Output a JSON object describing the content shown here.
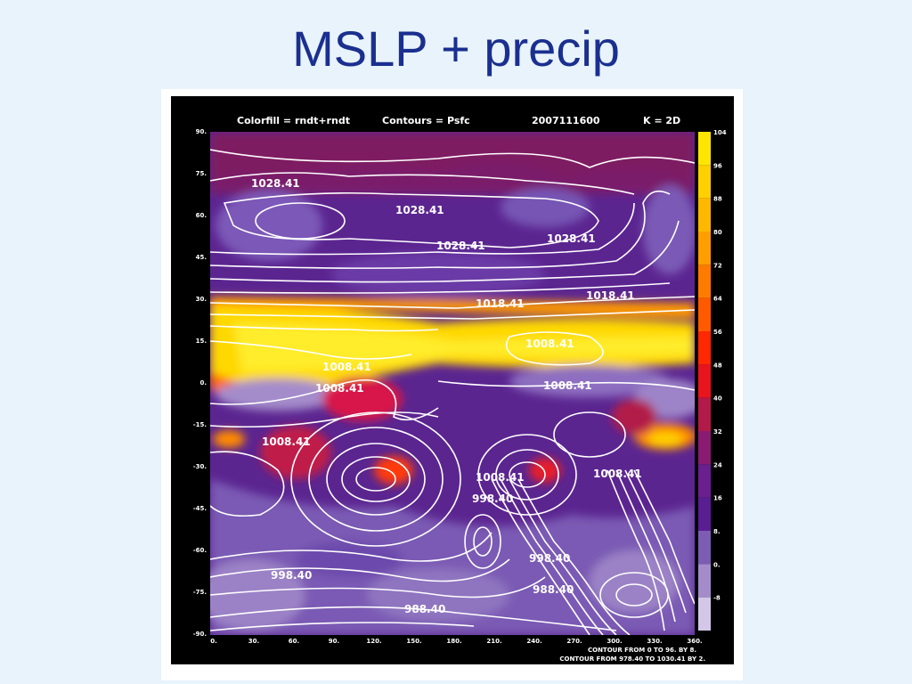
{
  "slide": {
    "title": "MSLP + precip"
  },
  "figure": {
    "header": {
      "colorfill": "Colorfill = rndt+rndt",
      "contours": "Contours = Psfc",
      "date": "2007111600",
      "k": "K =   2D"
    },
    "y_ticks": [
      "90.",
      "75.",
      "60.",
      "45.",
      "30.",
      "15.",
      "0.",
      "-15.",
      "-30.",
      "-45.",
      "-60.",
      "-75.",
      "-90."
    ],
    "x_ticks": [
      "0.",
      "30.",
      "60.",
      "90.",
      "120.",
      "150.",
      "180.",
      "210.",
      "240.",
      "270.",
      "300.",
      "330.",
      "360."
    ],
    "colorbar_labels": [
      "104",
      "96",
      "88",
      "80",
      "72",
      "64",
      "56",
      "48",
      "40",
      "32",
      "24",
      "16",
      "8.",
      "0.",
      "-8"
    ],
    "colorbar_colors": [
      "#ffe600",
      "#ffd000",
      "#ffb800",
      "#ff9e00",
      "#ff7b00",
      "#ff5a00",
      "#ff2800",
      "#e8141e",
      "#b21a4a",
      "#8a1b72",
      "#6a1f8e",
      "#5a1e93",
      "#7d5cb3",
      "#a48ccb",
      "#d3c6e6"
    ],
    "contour_labels": [
      "1028.41",
      "1028.41",
      "1028.41",
      "1028.41",
      "1018.41",
      "1018.41",
      "1008.41",
      "1008.41",
      "1008.41",
      "1008.41",
      "1008.41",
      "1008.41",
      "1008.41",
      "998.40",
      "998.40",
      "998.40",
      "988.40",
      "988.40"
    ],
    "footer": {
      "line1": "CONTOUR FROM 0 TO 96. BY 8.",
      "line2": "CONTOUR FROM 978.40 TO 1030.41 BY 2."
    }
  }
}
